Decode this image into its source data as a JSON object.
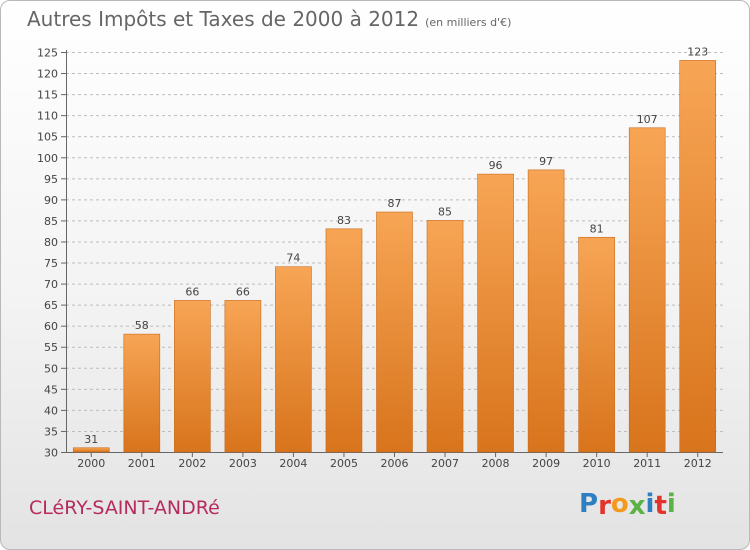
{
  "header": {
    "title": "Autres Impôts et Taxes de 2000 à 2012",
    "subtitle": "(en milliers d'€)"
  },
  "footer": {
    "commune": "CLéRY-SAINT-ANDRé",
    "logo_letters": [
      "P",
      "r",
      "o",
      "x",
      "i",
      "t",
      "i"
    ],
    "logo_colors": [
      "#2e7fc1",
      "#e2342a",
      "#f29a1f",
      "#5bb246",
      "#2e7fc1",
      "#e2342a",
      "#5bb246"
    ]
  },
  "chart_data": {
    "type": "bar",
    "categories": [
      "2000",
      "2001",
      "2002",
      "2003",
      "2004",
      "2005",
      "2006",
      "2007",
      "2008",
      "2009",
      "2010",
      "2011",
      "2012"
    ],
    "values": [
      31,
      58,
      66,
      66,
      74,
      83,
      87,
      85,
      96,
      97,
      81,
      107,
      123
    ],
    "ylim": [
      30,
      125
    ],
    "yticks": [
      30,
      35,
      40,
      45,
      50,
      55,
      60,
      65,
      70,
      75,
      80,
      85,
      90,
      95,
      100,
      105,
      110,
      115,
      120,
      125
    ],
    "grid": true,
    "bar_color_top": "#f7a555",
    "bar_color_bottom": "#d8741c",
    "grid_color": "#bdbdbd",
    "axis_color": "#666666",
    "label_color": "#444444"
  }
}
